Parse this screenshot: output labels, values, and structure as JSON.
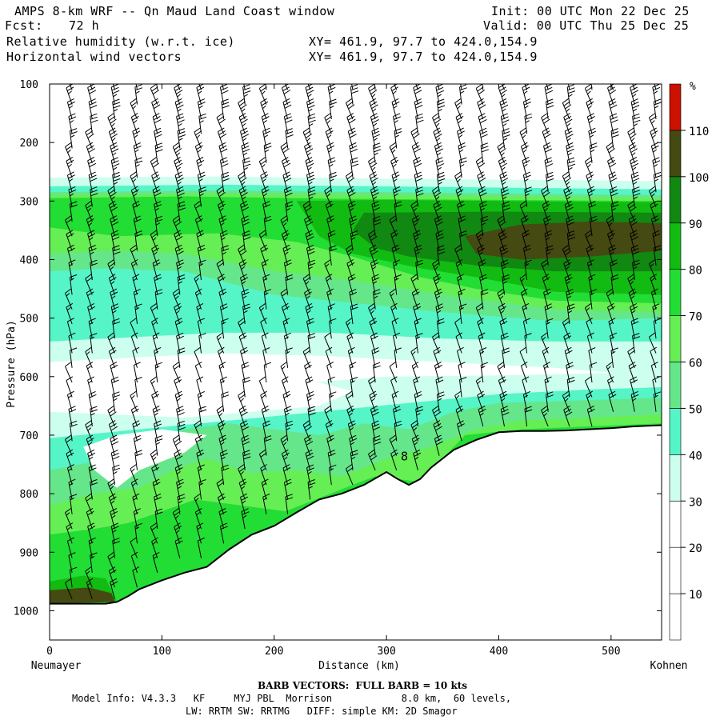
{
  "header": {
    "title": "AMPS 8-km WRF -- Qn Maud Land Coast window",
    "fcst_label": "Fcst:",
    "fcst_value": "72 h",
    "init": "Init: 00 UTC Mon 22 Dec 25",
    "valid": "Valid: 00 UTC Thu 25 Dec 25",
    "field1": "Relative humidity (w.r.t. ice)",
    "field1_xy": "XY= 461.9, 97.7 to 424.0,154.9",
    "field2": "Horizontal wind vectors",
    "field2_xy": "XY= 461.9, 97.7 to 424.0,154.9"
  },
  "footer": {
    "barb_note": "BARB VECTORS:  FULL BARB = 10 kts",
    "model_line1": "Model Info: V4.3.3   KF     MYJ PBL  Morrison            8.0 km,  60 levels,",
    "model_line2": "LW: RRTM SW: RRTMG   DIFF: simple KM: 2D Smagor"
  },
  "colors": {
    "c10_20": "#ffffff",
    "c20_30": "#ffffff",
    "c30_40": "#ccffee",
    "c40_50": "#55f5c8",
    "c50_60": "#66e68a",
    "c60_70": "#66ee55",
    "c70_80": "#22dd33",
    "c80_90": "#11bb11",
    "c90_100": "#118811",
    "c100_110": "#444a11",
    "c110_plus": "#cc1100",
    "terrain": "#ffffff",
    "barb": "#000000"
  },
  "chart_data": {
    "type": "contour-cross-section",
    "title": "Relative humidity (w.r.t. ice)",
    "xlabel": "Distance (km)",
    "ylabel": "Pressure (hPa)",
    "xlim": [
      0,
      545
    ],
    "ylim": [
      1050,
      100
    ],
    "x_ticks": [
      0,
      100,
      200,
      300,
      400,
      500
    ],
    "y_ticks": [
      100,
      200,
      300,
      400,
      500,
      600,
      700,
      800,
      900,
      1000
    ],
    "x_endpoint_labels": {
      "left": "Neumayer",
      "right": "Kohnen"
    },
    "colorbar": {
      "unit": "%",
      "levels": [
        10,
        20,
        30,
        40,
        50,
        60,
        70,
        80,
        90,
        100,
        110
      ],
      "colors": [
        "#ffffff",
        "#ffffff",
        "#ffffff",
        "#ccffee",
        "#55f5c8",
        "#66e68a",
        "#66ee55",
        "#22dd33",
        "#11bb11",
        "#118811",
        "#444a11",
        "#cc1100"
      ]
    },
    "annotation": {
      "text": "8",
      "distance_km": 316,
      "pressure_hPa": 735
    },
    "terrain_surface": {
      "distance_km": [
        0,
        50,
        60,
        70,
        80,
        100,
        120,
        140,
        160,
        180,
        200,
        220,
        240,
        260,
        280,
        300,
        310,
        320,
        330,
        340,
        360,
        380,
        400,
        420,
        440,
        460,
        480,
        500,
        520,
        545
      ],
      "pressure_hPa": [
        988,
        988,
        985,
        975,
        963,
        948,
        935,
        925,
        895,
        870,
        855,
        832,
        810,
        800,
        785,
        763,
        775,
        785,
        775,
        755,
        725,
        708,
        695,
        693,
        693,
        692,
        690,
        688,
        685,
        683
      ]
    },
    "rh_layers": [
      {
        "name": "upper-moist-layer",
        "level": 60,
        "top_hPa": [
          260,
          260,
          262,
          265,
          267,
          268,
          270,
          270
        ],
        "base_hPa": [
          590,
          575,
          560,
          555,
          560,
          565,
          570,
          575
        ],
        "x": [
          0,
          80,
          160,
          240,
          320,
          400,
          480,
          545
        ]
      },
      {
        "name": "upper-core",
        "level": 80,
        "top_hPa": [
          295,
          295,
          295,
          300,
          300,
          300,
          300,
          300
        ],
        "base_hPa": [
          335,
          330,
          330,
          340,
          420,
          440,
          460,
          470
        ],
        "x": [
          0,
          80,
          160,
          240,
          320,
          400,
          480,
          545
        ]
      },
      {
        "name": "upper-max",
        "level": 100,
        "top_hPa": [
          360,
          345,
          335,
          330,
          335
        ],
        "base_hPa": [
          380,
          395,
          400,
          395,
          390
        ],
        "x": [
          360,
          400,
          440,
          480,
          545
        ]
      },
      {
        "name": "low-moist-layer",
        "level": 50,
        "top_hPa": [
          660,
          650,
          640,
          630,
          620,
          615,
          610,
          605
        ],
        "base": "surface",
        "x": [
          0,
          80,
          160,
          240,
          320,
          400,
          480,
          545
        ]
      },
      {
        "name": "dry-pocket",
        "level": 20,
        "top_hPa": [
          575,
          590,
          595,
          600,
          610
        ],
        "base_hPa": [
          640,
          650,
          660,
          655,
          650
        ],
        "x": [
          0,
          60,
          120,
          180,
          240
        ]
      }
    ],
    "wind_barbs": {
      "columns_km": [
        20,
        38,
        58,
        78,
        96,
        116,
        135,
        155,
        174,
        193,
        212,
        232,
        251,
        270,
        290,
        309,
        328,
        347,
        367,
        386,
        405,
        425,
        444,
        463,
        483,
        502,
        521,
        540
      ],
      "pressure_levels_hPa": [
        110,
        135,
        160,
        185,
        210,
        235,
        260,
        285,
        310,
        335,
        360,
        385,
        410,
        435,
        460,
        485,
        510,
        535,
        560,
        585,
        610,
        635,
        660,
        685,
        710,
        735,
        760,
        785,
        810,
        835,
        860,
        885,
        910,
        935,
        960,
        980
      ],
      "speed_kts_by_level": [
        30,
        30,
        30,
        30,
        30,
        30,
        30,
        30,
        30,
        25,
        25,
        25,
        25,
        20,
        20,
        20,
        20,
        15,
        15,
        15,
        15,
        15,
        20,
        25,
        25,
        25,
        25,
        20,
        20,
        20,
        20,
        20,
        15,
        15,
        15,
        15
      ],
      "direction_deg": 250
    }
  }
}
